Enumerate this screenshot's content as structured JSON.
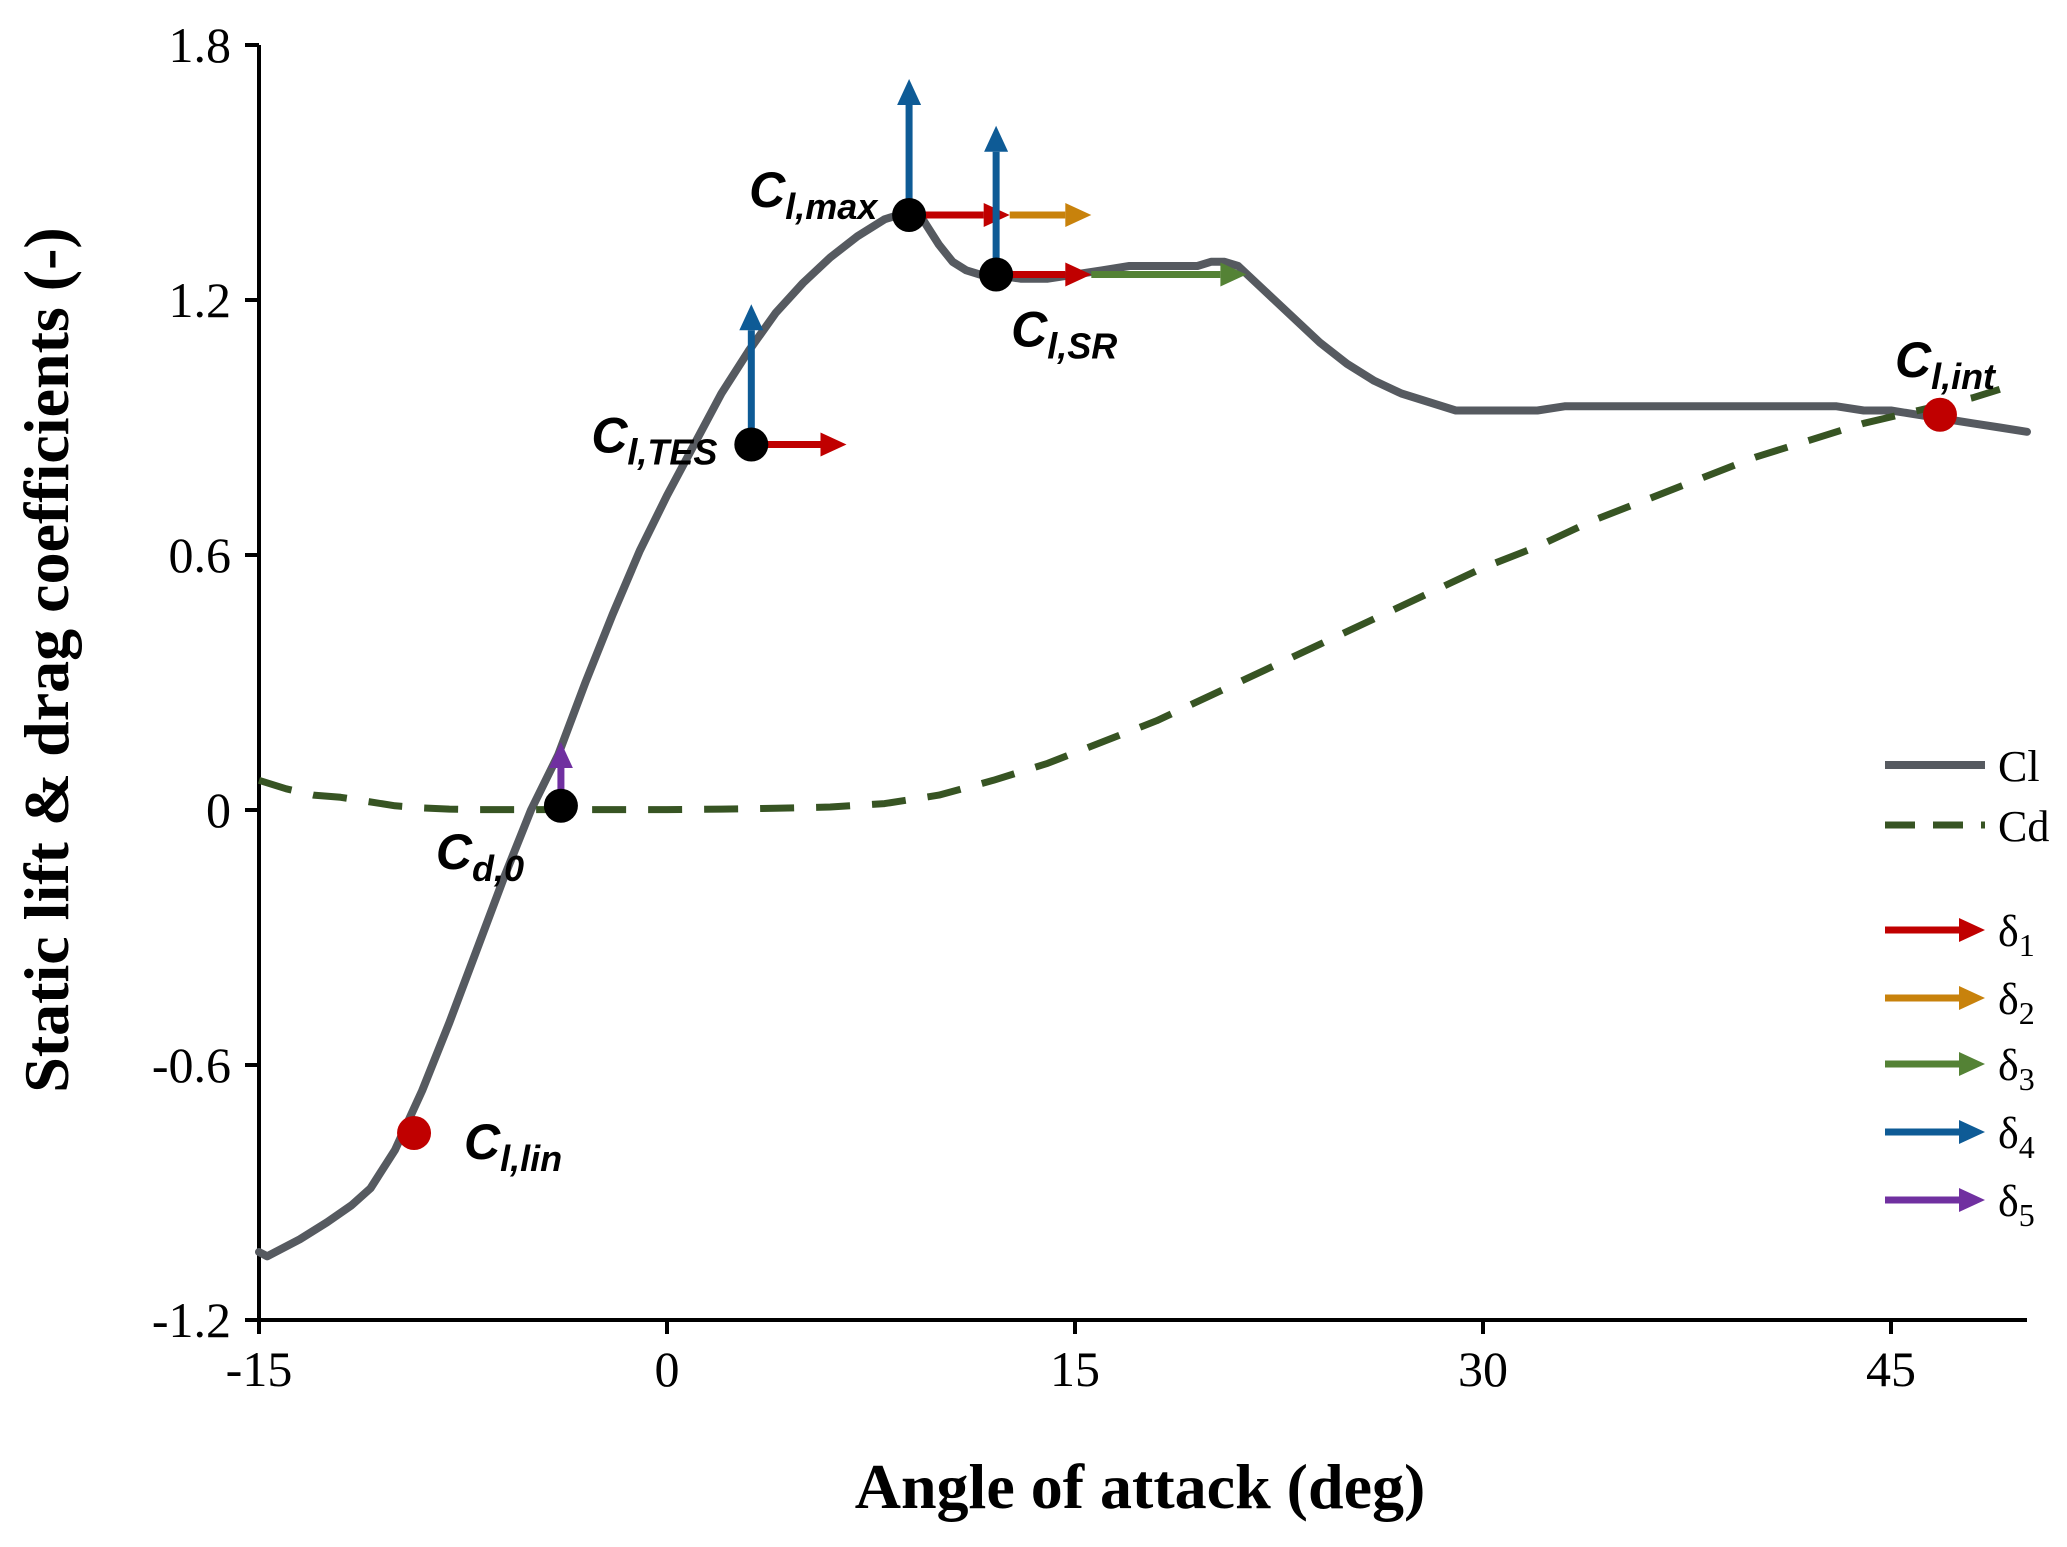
{
  "chart_data": {
    "type": "line",
    "title": "",
    "xlabel": "Angle of attack (deg)",
    "ylabel": "Static lift & drag coefficients (-)",
    "xlim": [
      -15,
      50
    ],
    "ylim": [
      -1.2,
      1.8
    ],
    "xticks": [
      -15,
      0,
      15,
      30,
      45
    ],
    "yticks": [
      -1.2,
      -0.6,
      0,
      0.6,
      1.2,
      1.8
    ],
    "ytick_labels": [
      "-1.2",
      "-0.6",
      "0",
      "0.6",
      "1.2",
      "1.8"
    ],
    "grid": false,
    "legend_position": "right",
    "series": [
      {
        "name": "Cl",
        "style": "solid",
        "color": "#565a60",
        "x": [
          -15,
          -14.7,
          -13.5,
          -12.5,
          -11.6,
          -10.9,
          -10,
          -9,
          -8,
          -7,
          -6,
          -5,
          -4,
          -3,
          -2,
          -1,
          0,
          1,
          2,
          3,
          4,
          5,
          6,
          7,
          8,
          8.5,
          9,
          9.4,
          10,
          10.5,
          11,
          11.5,
          12,
          13,
          14,
          15,
          16,
          17,
          18,
          19,
          19.5,
          20,
          20.5,
          21,
          22,
          23,
          24,
          25,
          26,
          27,
          28,
          29,
          30,
          31,
          32,
          33,
          34,
          35,
          36,
          37,
          38,
          39,
          40,
          41,
          42,
          43,
          44,
          45,
          46,
          47,
          48,
          49,
          50
        ],
        "y": [
          -1.04,
          -1.05,
          -1.01,
          -0.97,
          -0.93,
          -0.89,
          -0.8,
          -0.66,
          -0.5,
          -0.33,
          -0.16,
          0.0,
          0.13,
          0.3,
          0.46,
          0.61,
          0.74,
          0.86,
          0.98,
          1.08,
          1.17,
          1.24,
          1.3,
          1.35,
          1.39,
          1.4,
          1.4,
          1.39,
          1.33,
          1.29,
          1.27,
          1.26,
          1.26,
          1.25,
          1.25,
          1.26,
          1.27,
          1.28,
          1.28,
          1.28,
          1.28,
          1.29,
          1.29,
          1.28,
          1.22,
          1.16,
          1.1,
          1.05,
          1.01,
          0.98,
          0.96,
          0.94,
          0.94,
          0.94,
          0.94,
          0.95,
          0.95,
          0.95,
          0.95,
          0.95,
          0.95,
          0.95,
          0.95,
          0.95,
          0.95,
          0.95,
          0.94,
          0.94,
          0.93,
          0.92,
          0.91,
          0.9,
          0.89
        ]
      },
      {
        "name": "Cd",
        "style": "dashed",
        "color": "#375423",
        "x": [
          -15,
          -14,
          -13,
          -12,
          -11,
          -10,
          -9,
          -8,
          -7,
          -6,
          -5,
          -4,
          -3,
          -2,
          -1,
          0,
          2,
          4,
          6,
          8,
          10,
          12,
          14,
          16,
          18,
          20,
          22,
          24,
          26,
          28,
          30,
          32,
          34,
          36,
          38,
          40,
          42,
          44,
          46,
          48,
          49
        ],
        "y": [
          0.07,
          0.05,
          0.035,
          0.03,
          0.02,
          0.01,
          0.005,
          0.002,
          0.001,
          0.001,
          0.001,
          0.001,
          0.001,
          0.001,
          0.001,
          0.001,
          0.002,
          0.004,
          0.007,
          0.015,
          0.035,
          0.07,
          0.11,
          0.16,
          0.21,
          0.27,
          0.33,
          0.39,
          0.45,
          0.51,
          0.57,
          0.62,
          0.68,
          0.73,
          0.78,
          0.83,
          0.87,
          0.91,
          0.94,
          0.97,
          0.99
        ]
      }
    ],
    "points": [
      {
        "name": "Cl,lin",
        "x": -9.3,
        "y": -0.76,
        "color": "#c00000"
      },
      {
        "name": "Cd,0",
        "x": -3.9,
        "y": 0.01,
        "color": "#000000"
      },
      {
        "name": "Cl,TES",
        "x": 3.1,
        "y": 0.86,
        "color": "#000000"
      },
      {
        "name": "Cl,max",
        "x": 8.9,
        "y": 1.4,
        "color": "#000000"
      },
      {
        "name": "Cl,SR",
        "x": 12.1,
        "y": 1.26,
        "color": "#000000"
      },
      {
        "name": "Cl,int",
        "x": 46.8,
        "y": 0.93,
        "color": "#c00000"
      }
    ],
    "annotations": [
      {
        "main": "C",
        "sub": "l,lin",
        "point": 0
      },
      {
        "main": "C",
        "sub": "d,0",
        "point": 1
      },
      {
        "main": "C",
        "sub": "l,TES",
        "point": 2
      },
      {
        "main": "C",
        "sub": "l,max",
        "point": 3
      },
      {
        "main": "C",
        "sub": "l,SR",
        "point": 4
      },
      {
        "main": "C",
        "sub": "l,int",
        "point": 5
      }
    ],
    "arrows": [
      {
        "delta": 1,
        "dir": "right",
        "x0": 3.1,
        "y0": 0.86,
        "x1": 6.6,
        "y1": 0.86
      },
      {
        "delta": 4,
        "dir": "up",
        "x0": 3.1,
        "y0": 0.86,
        "x1": 3.1,
        "y1": 1.19
      },
      {
        "delta": 1,
        "dir": "right",
        "x0": 8.9,
        "y0": 1.4,
        "x1": 12.6,
        "y1": 1.4
      },
      {
        "delta": 2,
        "dir": "right",
        "x0": 12.6,
        "y0": 1.4,
        "x1": 15.6,
        "y1": 1.4
      },
      {
        "delta": 4,
        "dir": "up",
        "x0": 8.9,
        "y0": 1.4,
        "x1": 8.9,
        "y1": 1.72
      },
      {
        "delta": 1,
        "dir": "right",
        "x0": 12.1,
        "y0": 1.26,
        "x1": 15.6,
        "y1": 1.26
      },
      {
        "delta": 3,
        "dir": "right",
        "x0": 15.6,
        "y0": 1.26,
        "x1": 21.3,
        "y1": 1.26
      },
      {
        "delta": 4,
        "dir": "up",
        "x0": 12.1,
        "y0": 1.26,
        "x1": 12.1,
        "y1": 1.61
      },
      {
        "delta": 5,
        "dir": "up",
        "x0": -3.9,
        "y0": 0.01,
        "x1": -3.9,
        "y1": 0.16
      }
    ],
    "legend": [
      {
        "label": "Cl",
        "kind": "line-solid",
        "color": "#565a60"
      },
      {
        "label": "Cd",
        "kind": "line-dashed",
        "color": "#375423"
      },
      {
        "label": "δ",
        "sub": "1",
        "kind": "arrow",
        "color": "#c00000"
      },
      {
        "label": "δ",
        "sub": "2",
        "kind": "arrow",
        "color": "#c8820c"
      },
      {
        "label": "δ",
        "sub": "3",
        "kind": "arrow",
        "color": "#548235"
      },
      {
        "label": "δ",
        "sub": "4",
        "kind": "arrow",
        "color": "#0e5b96"
      },
      {
        "label": "δ",
        "sub": "5",
        "kind": "arrow",
        "color": "#7030a0"
      }
    ],
    "delta_colors": {
      "1": "#c00000",
      "2": "#c8820c",
      "3": "#548235",
      "4": "#0e5b96",
      "5": "#7030a0"
    }
  }
}
